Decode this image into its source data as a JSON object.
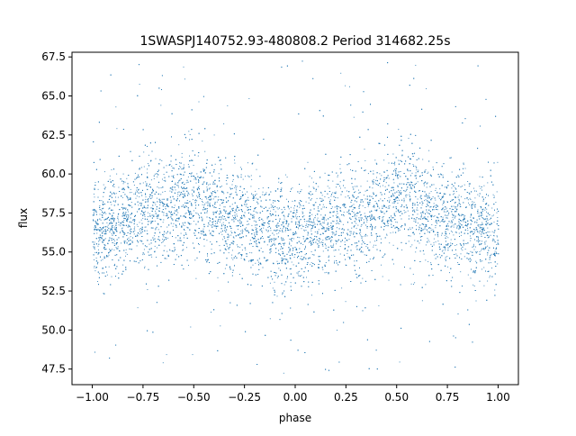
{
  "chart_data": {
    "type": "scatter",
    "title": "1SWASPJ140752.93-480808.2 Period 314682.25s",
    "xlabel": "phase",
    "ylabel": "flux",
    "xlim": [
      -1.1,
      1.1
    ],
    "ylim": [
      46.5,
      67.8
    ],
    "xticks": [
      -1.0,
      -0.75,
      -0.5,
      -0.25,
      0.0,
      0.25,
      0.5,
      0.75,
      1.0
    ],
    "xtick_labels": [
      "−1.00",
      "−0.75",
      "−0.50",
      "−0.25",
      "0.00",
      "0.25",
      "0.50",
      "0.75",
      "1.00"
    ],
    "yticks": [
      47.5,
      50.0,
      52.5,
      55.0,
      57.5,
      60.0,
      62.5,
      65.0,
      67.5
    ],
    "ytick_labels": [
      "47.5",
      "50.0",
      "52.5",
      "55.0",
      "57.5",
      "60.0",
      "62.5",
      "65.0",
      "67.5"
    ],
    "grid": false,
    "marker_color": "#1f77b4",
    "trend": {
      "description_phase": [
        -1.0,
        -0.75,
        -0.5,
        -0.25,
        0.0,
        0.25,
        0.5,
        0.75,
        1.0
      ],
      "median_flux": [
        56.3,
        57.6,
        58.2,
        56.8,
        55.9,
        57.2,
        58.3,
        57.0,
        56.3
      ],
      "spread": [
        1.6,
        1.7,
        1.8,
        1.7,
        1.6,
        1.7,
        1.8,
        1.7,
        1.6
      ]
    }
  }
}
